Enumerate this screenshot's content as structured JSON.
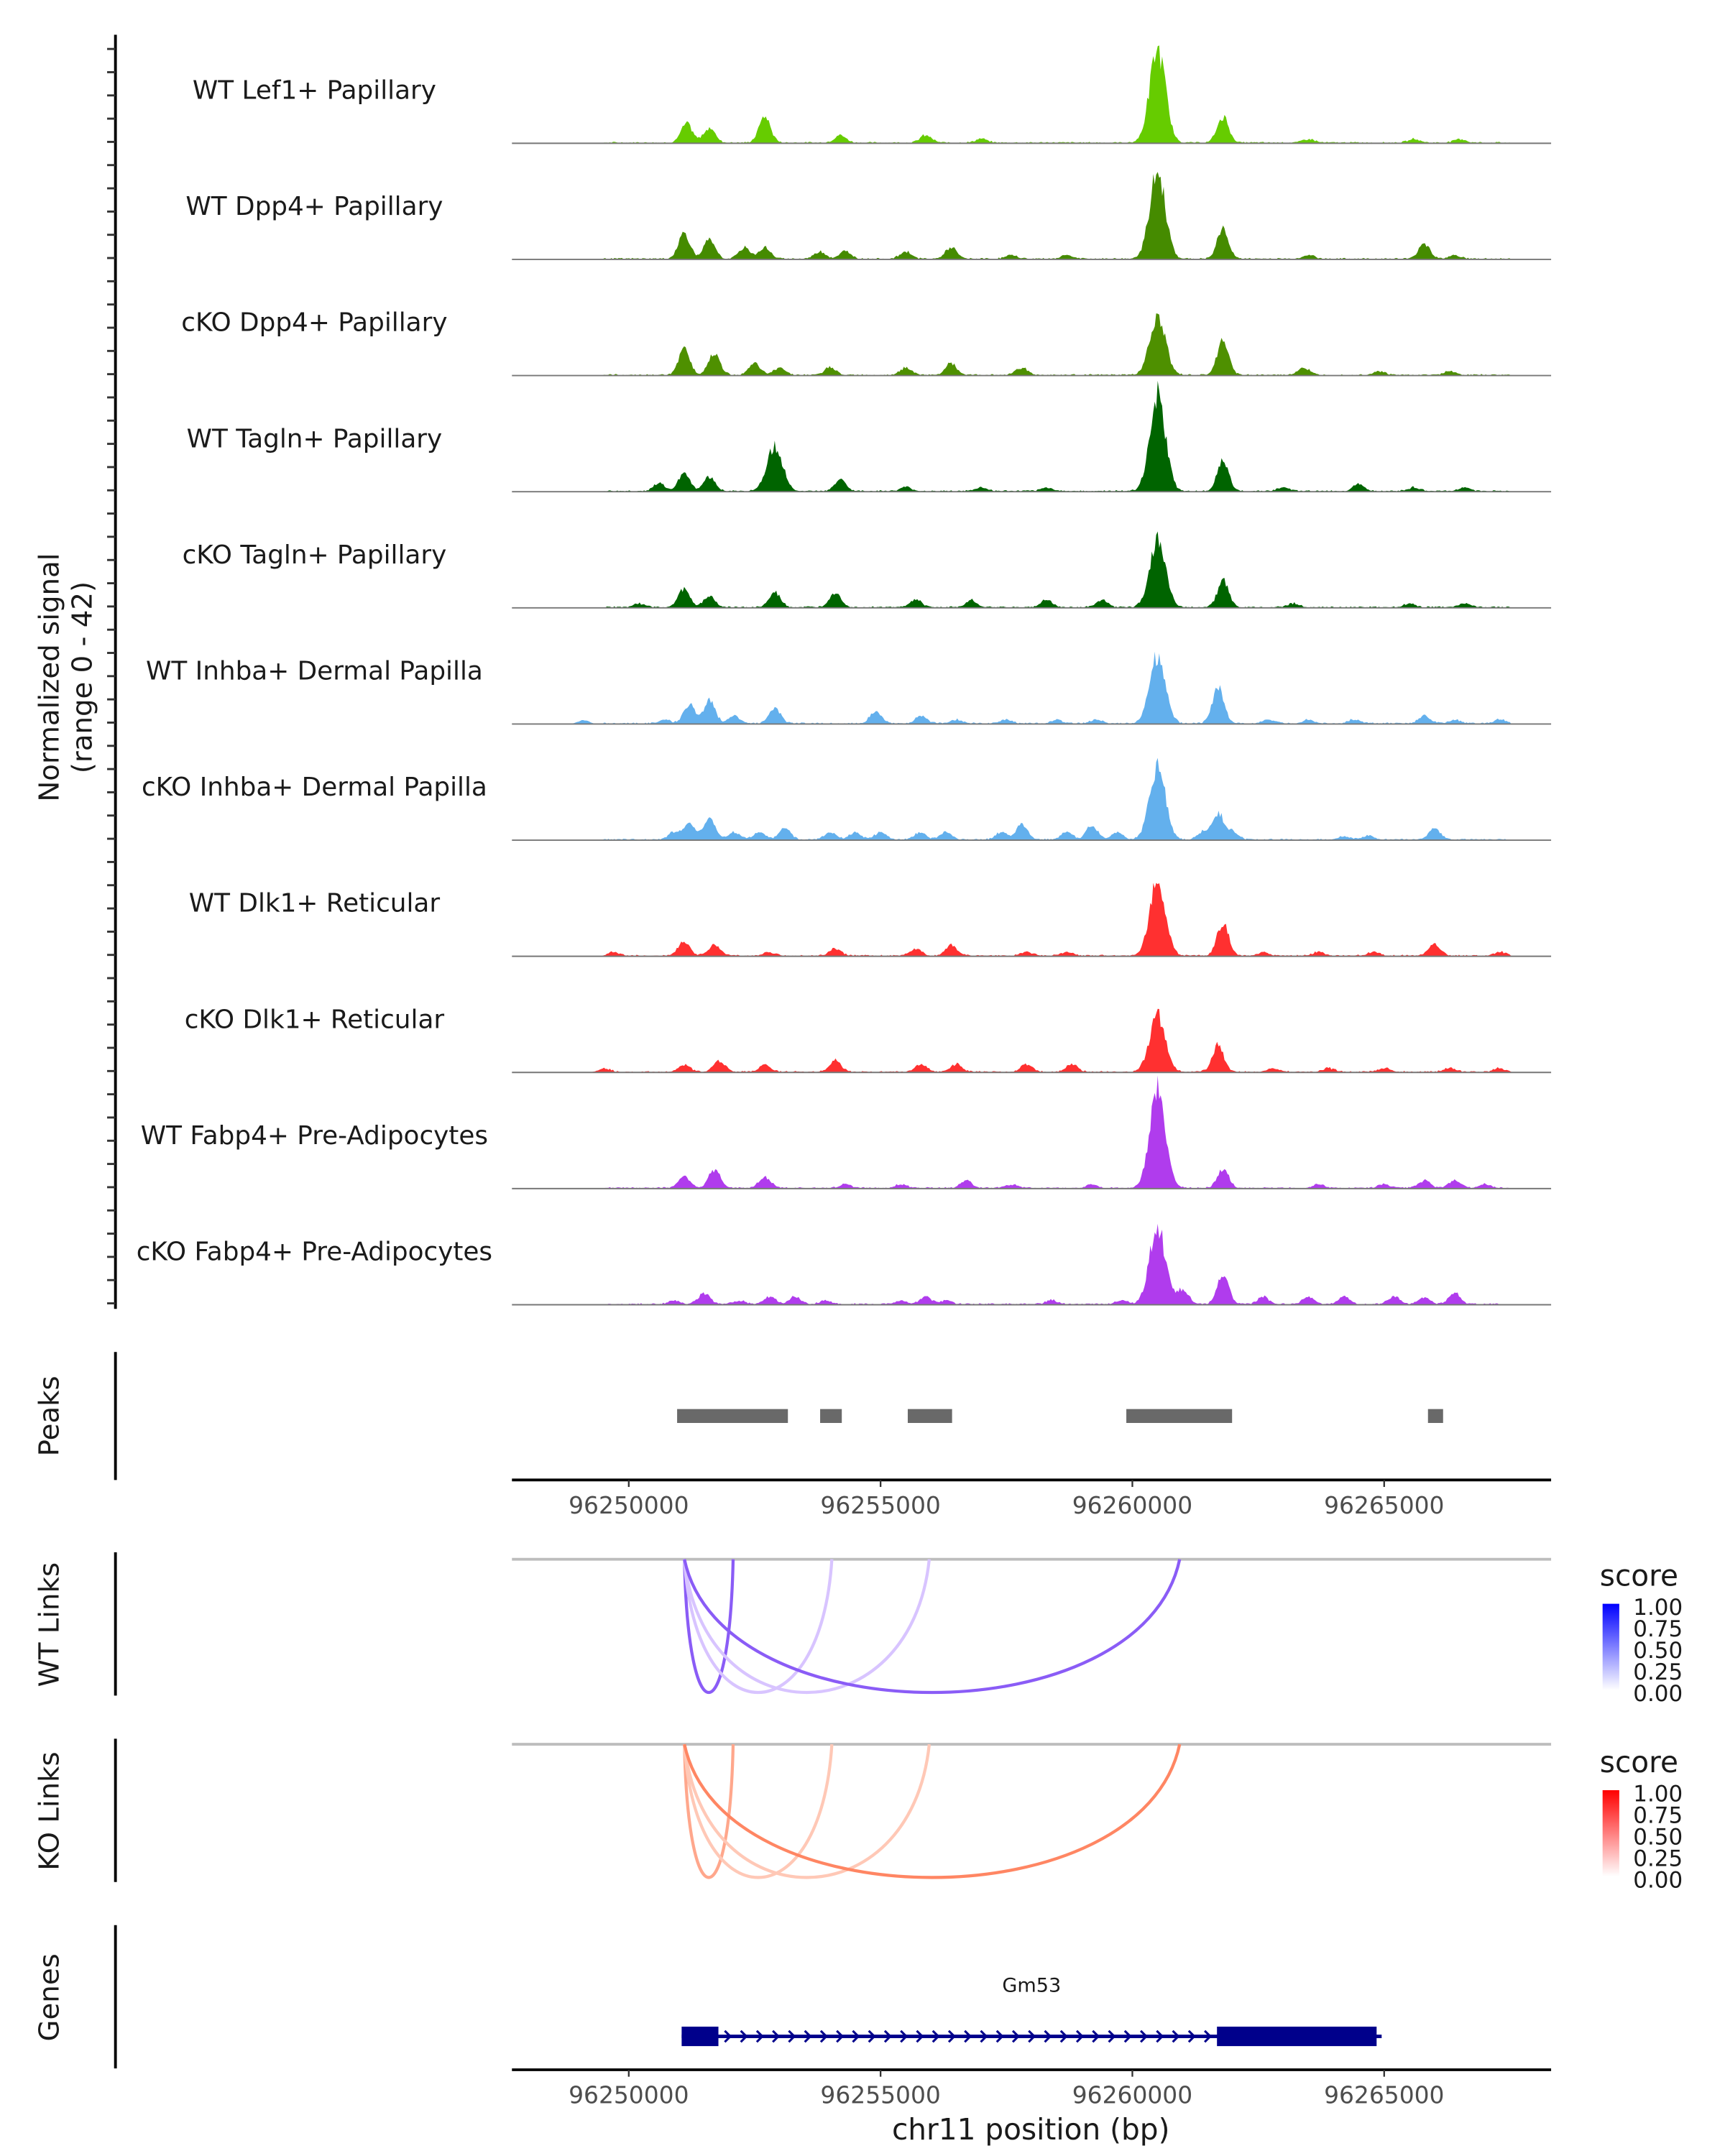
{
  "chart_data": {
    "type": "area",
    "title": "",
    "ylabel": "Normalized signal\n(range 0 - 42)",
    "ylabel_lines": [
      "Normalized signal",
      "(range 0 - 42)"
    ],
    "ylim": [
      0,
      42
    ],
    "xlabel": "chr11 position (bp)",
    "xlim": [
      96247680,
      96268315
    ],
    "x_ticks": [
      96250000,
      96255000,
      96260000,
      96265000
    ],
    "x_tick_labels": [
      "96250000",
      "96255000",
      "96260000",
      "96265000"
    ],
    "tracks": [
      {
        "name": "WT Lef1+ Papillary",
        "color": "#66CC00",
        "peaks": [
          [
            96251150,
            5
          ],
          [
            96251600,
            4
          ],
          [
            96252700,
            7
          ],
          [
            96254200,
            2
          ],
          [
            96255900,
            2
          ],
          [
            96257000,
            1
          ],
          [
            96260500,
            25
          ],
          [
            96261800,
            7
          ],
          [
            96263500,
            1
          ],
          [
            96265600,
            1
          ],
          [
            96266500,
            1
          ]
        ]
      },
      {
        "name": "WT Dpp4+ Papillary",
        "color": "#458B00",
        "peaks": [
          [
            96251100,
            7
          ],
          [
            96251600,
            5
          ],
          [
            96252300,
            3
          ],
          [
            96252700,
            3
          ],
          [
            96253800,
            2
          ],
          [
            96254300,
            2
          ],
          [
            96255500,
            2
          ],
          [
            96256400,
            3
          ],
          [
            96257600,
            1
          ],
          [
            96258700,
            1
          ],
          [
            96260500,
            23
          ],
          [
            96261800,
            8
          ],
          [
            96263500,
            1
          ],
          [
            96265800,
            4
          ],
          [
            96266400,
            1
          ]
        ]
      },
      {
        "name": "cKO Dpp4+ Papillary",
        "color": "#4E9000",
        "peaks": [
          [
            96251100,
            7
          ],
          [
            96251700,
            6
          ],
          [
            96252500,
            3
          ],
          [
            96253000,
            2
          ],
          [
            96254000,
            2
          ],
          [
            96255500,
            2
          ],
          [
            96256400,
            3
          ],
          [
            96257800,
            2
          ],
          [
            96260500,
            16
          ],
          [
            96261800,
            9
          ],
          [
            96263400,
            2
          ],
          [
            96264900,
            1
          ],
          [
            96266300,
            1
          ]
        ]
      },
      {
        "name": "WT Tagln+ Papillary",
        "color": "#006400",
        "peaks": [
          [
            96250600,
            2
          ],
          [
            96251100,
            5
          ],
          [
            96251600,
            4
          ],
          [
            96252900,
            12
          ],
          [
            96254200,
            3
          ],
          [
            96255500,
            1
          ],
          [
            96257000,
            1
          ],
          [
            96258300,
            1
          ],
          [
            96260500,
            26
          ],
          [
            96261800,
            8
          ],
          [
            96263000,
            1
          ],
          [
            96264500,
            2
          ],
          [
            96265600,
            1
          ],
          [
            96266600,
            1
          ]
        ]
      },
      {
        "name": "cKO Tagln+ Papillary",
        "color": "#006400",
        "peaks": [
          [
            96250200,
            1
          ],
          [
            96251100,
            5
          ],
          [
            96251600,
            3
          ],
          [
            96252900,
            4
          ],
          [
            96254100,
            4
          ],
          [
            96255700,
            2
          ],
          [
            96256800,
            2
          ],
          [
            96258300,
            2
          ],
          [
            96259400,
            2
          ],
          [
            96260500,
            18
          ],
          [
            96261800,
            7
          ],
          [
            96263200,
            1
          ],
          [
            96265500,
            1
          ],
          [
            96266600,
            1
          ]
        ]
      },
      {
        "name": "WT Inhba+ Dermal Papilla",
        "color": "#63B0ED",
        "peaks": [
          [
            96249100,
            1
          ],
          [
            96250700,
            1
          ],
          [
            96251200,
            5
          ],
          [
            96251600,
            6
          ],
          [
            96252100,
            2
          ],
          [
            96252900,
            4
          ],
          [
            96254900,
            3
          ],
          [
            96255800,
            2
          ],
          [
            96256500,
            1
          ],
          [
            96257500,
            1
          ],
          [
            96258500,
            1
          ],
          [
            96259300,
            1
          ],
          [
            96260500,
            18
          ],
          [
            96261700,
            10
          ],
          [
            96262700,
            1
          ],
          [
            96263500,
            1
          ],
          [
            96264400,
            1
          ],
          [
            96265800,
            2
          ],
          [
            96266400,
            1
          ],
          [
            96267300,
            1
          ]
        ]
      },
      {
        "name": "cKO Inhba+ Dermal Papilla",
        "color": "#63B0ED",
        "peaks": [
          [
            96250900,
            2
          ],
          [
            96251200,
            4
          ],
          [
            96251600,
            6
          ],
          [
            96252100,
            2
          ],
          [
            96252600,
            2
          ],
          [
            96253100,
            3
          ],
          [
            96254000,
            2
          ],
          [
            96254500,
            2
          ],
          [
            96255000,
            2
          ],
          [
            96255800,
            2
          ],
          [
            96256300,
            2
          ],
          [
            96257400,
            2
          ],
          [
            96257800,
            4
          ],
          [
            96258700,
            2
          ],
          [
            96259200,
            4
          ],
          [
            96259700,
            2
          ],
          [
            96260500,
            20
          ],
          [
            96261400,
            2
          ],
          [
            96261700,
            7
          ],
          [
            96262000,
            2
          ],
          [
            96264200,
            1
          ],
          [
            96264700,
            1
          ],
          [
            96266000,
            3
          ]
        ]
      },
      {
        "name": "WT Dlk1+ Reticular",
        "color": "#FF3030",
        "peaks": [
          [
            96249700,
            1
          ],
          [
            96251100,
            4
          ],
          [
            96251700,
            3
          ],
          [
            96252800,
            1
          ],
          [
            96254100,
            2
          ],
          [
            96255700,
            2
          ],
          [
            96256400,
            3
          ],
          [
            96257900,
            1
          ],
          [
            96258700,
            1
          ],
          [
            96260500,
            20
          ],
          [
            96261800,
            9
          ],
          [
            96262600,
            1
          ],
          [
            96263700,
            1
          ],
          [
            96264800,
            1
          ],
          [
            96266000,
            3
          ],
          [
            96267300,
            1
          ]
        ]
      },
      {
        "name": "cKO Dlk1+ Reticular",
        "color": "#FF3030",
        "peaks": [
          [
            96249500,
            1
          ],
          [
            96251100,
            2
          ],
          [
            96251800,
            3
          ],
          [
            96252700,
            2
          ],
          [
            96254100,
            3
          ],
          [
            96255800,
            2
          ],
          [
            96256500,
            2
          ],
          [
            96257900,
            2
          ],
          [
            96258800,
            2
          ],
          [
            96260500,
            15
          ],
          [
            96261700,
            7
          ],
          [
            96262800,
            1
          ],
          [
            96263900,
            1
          ],
          [
            96265000,
            1
          ],
          [
            96266300,
            1
          ],
          [
            96267300,
            1
          ]
        ]
      },
      {
        "name": "WT Fabp4+ Pre-Adipocytes",
        "color": "#B03CED",
        "peaks": [
          [
            96251100,
            3
          ],
          [
            96251700,
            5
          ],
          [
            96252700,
            3
          ],
          [
            96254300,
            1
          ],
          [
            96255400,
            1
          ],
          [
            96256700,
            2
          ],
          [
            96257600,
            1
          ],
          [
            96259200,
            1
          ],
          [
            96260500,
            27
          ],
          [
            96261800,
            5
          ],
          [
            96263700,
            1
          ],
          [
            96265000,
            1
          ],
          [
            96265800,
            2
          ],
          [
            96266400,
            2
          ],
          [
            96267000,
            1
          ]
        ]
      },
      {
        "name": "cKO Fabp4+ Pre-Adipocytes",
        "color": "#B03CED",
        "peaks": [
          [
            96250900,
            1
          ],
          [
            96251500,
            3
          ],
          [
            96252200,
            1
          ],
          [
            96252800,
            2
          ],
          [
            96253300,
            2
          ],
          [
            96253900,
            1
          ],
          [
            96255400,
            1
          ],
          [
            96255900,
            2
          ],
          [
            96256300,
            1
          ],
          [
            96258400,
            1
          ],
          [
            96259800,
            1
          ],
          [
            96260500,
            21
          ],
          [
            96261000,
            4
          ],
          [
            96261800,
            8
          ],
          [
            96262600,
            2
          ],
          [
            96263500,
            2
          ],
          [
            96264200,
            2
          ],
          [
            96265200,
            2
          ],
          [
            96265800,
            2
          ],
          [
            96266400,
            3
          ]
        ]
      }
    ],
    "peaks_track": {
      "label": "Peaks",
      "color": "#696969",
      "regions": [
        [
          96250960,
          96253160
        ],
        [
          96253800,
          96254230
        ],
        [
          96255540,
          96256420
        ],
        [
          96259880,
          96261980
        ],
        [
          96265870,
          96266170
        ]
      ]
    },
    "links": [
      {
        "label": "WT Links",
        "legend_title": "score",
        "color_high": "#0000FF",
        "color_low": "#FFFFFF",
        "legend_ticks": [
          "1.00",
          "0.75",
          "0.50",
          "0.25",
          "0.00"
        ],
        "arcs": [
          {
            "start": 96251105,
            "end": 96252072,
            "score": 0.55
          },
          {
            "start": 96251105,
            "end": 96254033,
            "score": 0.25
          },
          {
            "start": 96251105,
            "end": 96255967,
            "score": 0.22
          },
          {
            "start": 96251105,
            "end": 96260939,
            "score": 0.65
          }
        ]
      },
      {
        "label": "KO Links",
        "legend_title": "score",
        "color_high": "#FF0000",
        "color_low": "#FFFFFF",
        "legend_ticks": [
          "1.00",
          "0.75",
          "0.50",
          "0.25",
          "0.00"
        ],
        "arcs": [
          {
            "start": 96251105,
            "end": 96252072,
            "score": 0.5
          },
          {
            "start": 96251105,
            "end": 96254033,
            "score": 0.28
          },
          {
            "start": 96251105,
            "end": 96255967,
            "score": 0.28
          },
          {
            "start": 96251105,
            "end": 96260939,
            "score": 0.6
          }
        ]
      }
    ],
    "genes": {
      "label": "Genes",
      "color": "#00008B",
      "items": [
        {
          "name": "Gm53",
          "start": 96251050,
          "end": 96264950,
          "strand": "+",
          "exons": [
            [
              96251050,
              96251780
            ],
            [
              96261680,
              96264850
            ]
          ]
        }
      ]
    }
  }
}
